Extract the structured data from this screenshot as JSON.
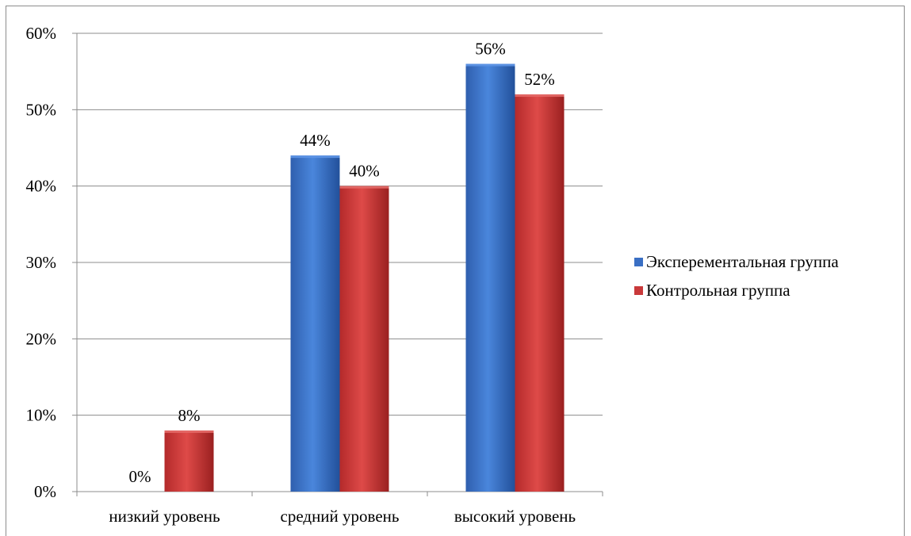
{
  "chart_data": {
    "type": "bar",
    "categories": [
      "низкий уровень",
      "средний уровень",
      "высокий уровень"
    ],
    "series": [
      {
        "name": "Эксперементальная группа",
        "values": [
          0,
          44,
          56
        ],
        "labels": [
          "0%",
          "44%",
          "56%"
        ],
        "color": "#3a6fc4"
      },
      {
        "name": "Контрольная группа",
        "values": [
          8,
          40,
          52
        ],
        "labels": [
          "8%",
          "40%",
          "52%"
        ],
        "color": "#c9393a"
      }
    ],
    "yticks": [
      "0%",
      "10%",
      "20%",
      "30%",
      "40%",
      "50%",
      "60%"
    ],
    "ylim": [
      0,
      60
    ],
    "grid": true,
    "legend_position": "right"
  }
}
